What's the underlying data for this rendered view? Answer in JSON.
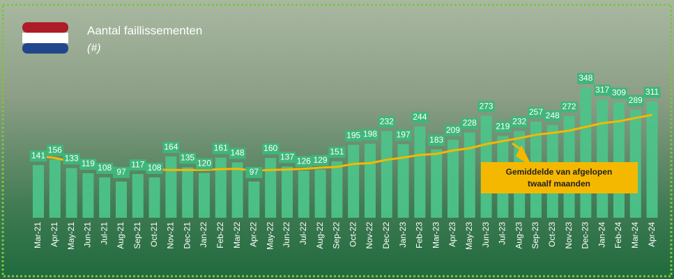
{
  "chart_data": {
    "type": "bar",
    "title": "Aantal faillissementen",
    "subtitle": "(#)",
    "categories": [
      "Mar-21",
      "Apr-21",
      "May-21",
      "Jun-21",
      "Jul-21",
      "Aug-21",
      "Sep-21",
      "Oct-21",
      "Nov-21",
      "Dec-21",
      "Jan-22",
      "Feb-22",
      "Mar-22",
      "Apr-22",
      "May-22",
      "Jun-22",
      "Jul-22",
      "Aug-22",
      "Sep-22",
      "Oct-22",
      "Nov-22",
      "Dec-22",
      "Jan-23",
      "Feb-23",
      "Mar-23",
      "Apr-23",
      "May-23",
      "Jun-23",
      "Jul-23",
      "Aug-23",
      "Sep-23",
      "Oct-23",
      "Nov-23",
      "Dec-23",
      "Jan-24",
      "Feb-24",
      "Mar-24",
      "Apr-24"
    ],
    "values": [
      141,
      156,
      133,
      119,
      108,
      97,
      117,
      108,
      164,
      135,
      120,
      161,
      148,
      97,
      160,
      137,
      126,
      129,
      151,
      195,
      198,
      232,
      197,
      244,
      183,
      209,
      228,
      273,
      219,
      232,
      257,
      248,
      272,
      348,
      317,
      309,
      289,
      311
    ],
    "color": "#4cc48a",
    "line": {
      "color": "#f5b800",
      "values": [
        165,
        160,
        150,
        142,
        136,
        132,
        130,
        129,
        128,
        128,
        128,
        130,
        131,
        126,
        128,
        129,
        131,
        134,
        136,
        144,
        146,
        155,
        161,
        168,
        171,
        180,
        186,
        197,
        205,
        213,
        222,
        227,
        233,
        243,
        253,
        258,
        267,
        275
      ]
    },
    "annotation": [
      "Gemiddelde van afgelopen",
      "twaalf maanden"
    ],
    "ylim": [
      0,
      400
    ]
  }
}
